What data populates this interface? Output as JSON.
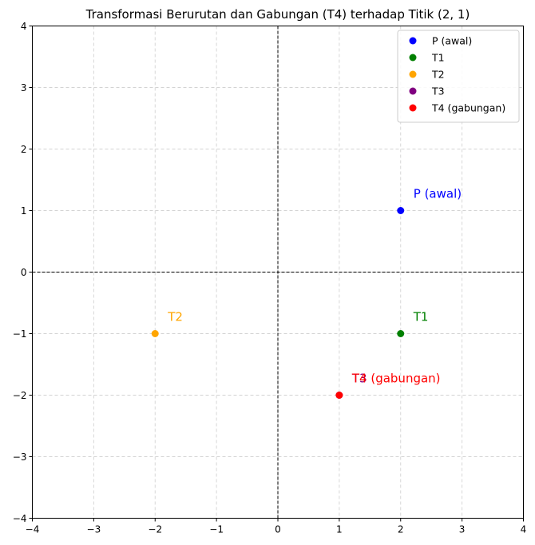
{
  "chart_data": {
    "type": "scatter",
    "title": "Transformasi Berurutan dan Gabungan (T4) terhadap Titik (2, 1)",
    "xlabel": "",
    "ylabel": "",
    "xlim": [
      -4,
      4
    ],
    "ylim": [
      -4,
      4
    ],
    "xticks": [
      "−4",
      "−3",
      "−2",
      "−1",
      "0",
      "1",
      "2",
      "3",
      "4"
    ],
    "yticks": [
      "−4",
      "−3",
      "−2",
      "−1",
      "0",
      "1",
      "2",
      "3",
      "4"
    ],
    "grid": true,
    "axis_lines": "dashed at x=0 and y=0",
    "legend_position": "upper-right",
    "series": [
      {
        "name": "P (awal)",
        "x": 2,
        "y": 1,
        "color": "#0000ff",
        "annotation": "P (awal)"
      },
      {
        "name": "T1",
        "x": 2,
        "y": -1,
        "color": "#008000",
        "annotation": "T1"
      },
      {
        "name": "T2",
        "x": -2,
        "y": -1,
        "color": "#ffa500",
        "annotation": "T2"
      },
      {
        "name": "T3",
        "x": 1,
        "y": -2,
        "color": "#800080",
        "annotation": "T3"
      },
      {
        "name": "T4 (gabungan)",
        "x": 1,
        "y": -2,
        "color": "#ff0000",
        "annotation": "T4 (gabungan)"
      }
    ]
  }
}
